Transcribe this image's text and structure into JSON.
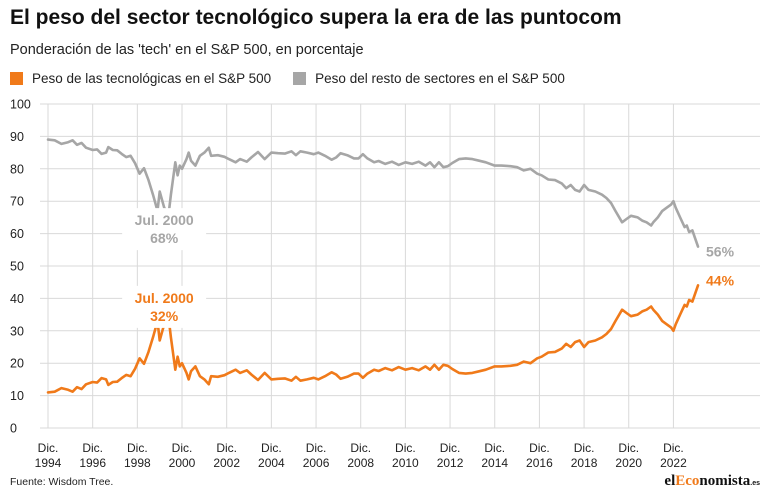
{
  "header": {
    "title": "El peso del sector tecnológico supera la era de las puntocom",
    "subtitle": "Ponderación de las 'tech' en el S&P 500, en porcentaje"
  },
  "footer": {
    "source": "Fuente: Wisdom Tree.",
    "brand_prefix": "el",
    "brand_accent": "Eco",
    "brand_suffix": "nomista",
    "brand_tld": ".es"
  },
  "colors": {
    "tech": "#f07a1a",
    "rest": "#a6a6a6",
    "grid": "#d9d9d9",
    "brand_accent": "#f07a1a"
  },
  "chart_data": {
    "type": "line",
    "title": "El peso del sector tecnológico supera la era de las puntocom",
    "subtitle": "Ponderación de las 'tech' en el S&P 500, en porcentaje",
    "xlabel": "",
    "ylabel": "",
    "ylim": [
      0,
      100
    ],
    "yticks": [
      0,
      10,
      20,
      30,
      40,
      50,
      60,
      70,
      80,
      90,
      100
    ],
    "xlim": [
      1994.9,
      2024.0
    ],
    "xticks": [
      {
        "value": 1994.9,
        "line1": "Dic.",
        "line2": "1994"
      },
      {
        "value": 1996.9,
        "line1": "Dic.",
        "line2": "1996"
      },
      {
        "value": 1998.9,
        "line1": "Dic.",
        "line2": "1998"
      },
      {
        "value": 2000.9,
        "line1": "Dic.",
        "line2": "2000"
      },
      {
        "value": 2002.9,
        "line1": "Dic.",
        "line2": "2002"
      },
      {
        "value": 2004.9,
        "line1": "Dic.",
        "line2": "2004"
      },
      {
        "value": 2006.9,
        "line1": "Dic.",
        "line2": "2006"
      },
      {
        "value": 2008.9,
        "line1": "Dic.",
        "line2": "2008"
      },
      {
        "value": 2010.9,
        "line1": "Dic.",
        "line2": "2010"
      },
      {
        "value": 2012.9,
        "line1": "Dic.",
        "line2": "2012"
      },
      {
        "value": 2014.9,
        "line1": "Dic.",
        "line2": "2014"
      },
      {
        "value": 2016.9,
        "line1": "Dic.",
        "line2": "2016"
      },
      {
        "value": 2018.9,
        "line1": "Dic.",
        "line2": "2018"
      },
      {
        "value": 2020.9,
        "line1": "Dic.",
        "line2": "2020"
      },
      {
        "value": 2022.9,
        "line1": "Dic.",
        "line2": "2022"
      }
    ],
    "grid": true,
    "legend_position": "top-left",
    "series": [
      {
        "name": "Peso de las tecnológicas en el S&P 500",
        "color": "#f07a1a",
        "points": [
          [
            1994.9,
            11
          ],
          [
            1995.2,
            11.2
          ],
          [
            1995.5,
            12.3
          ],
          [
            1995.8,
            11.8
          ],
          [
            1996.0,
            11.2
          ],
          [
            1996.2,
            12.6
          ],
          [
            1996.4,
            12.0
          ],
          [
            1996.6,
            13.5
          ],
          [
            1996.9,
            14.2
          ],
          [
            1997.1,
            14.0
          ],
          [
            1997.3,
            15.4
          ],
          [
            1997.5,
            15.0
          ],
          [
            1997.6,
            13.3
          ],
          [
            1997.8,
            14.2
          ],
          [
            1998.0,
            14.3
          ],
          [
            1998.2,
            15.4
          ],
          [
            1998.4,
            16.4
          ],
          [
            1998.6,
            16.0
          ],
          [
            1998.8,
            18.3
          ],
          [
            1999.0,
            21.5
          ],
          [
            1999.2,
            19.8
          ],
          [
            1999.4,
            23.5
          ],
          [
            1999.6,
            28.0
          ],
          [
            1999.8,
            33.0
          ],
          [
            1999.9,
            27.0
          ],
          [
            2000.1,
            32.0
          ],
          [
            2000.3,
            34.0
          ],
          [
            2000.4,
            28.0
          ],
          [
            2000.5,
            23.0
          ],
          [
            2000.6,
            18.0
          ],
          [
            2000.7,
            22.0
          ],
          [
            2000.8,
            19.0
          ],
          [
            2000.9,
            20.0
          ],
          [
            2001.1,
            17.0
          ],
          [
            2001.2,
            15.0
          ],
          [
            2001.3,
            17.5
          ],
          [
            2001.5,
            19.0
          ],
          [
            2001.7,
            16.0
          ],
          [
            2001.9,
            15.0
          ],
          [
            2002.1,
            13.5
          ],
          [
            2002.2,
            16.0
          ],
          [
            2002.5,
            15.8
          ],
          [
            2002.8,
            16.3
          ],
          [
            2003.0,
            17.0
          ],
          [
            2003.3,
            18.0
          ],
          [
            2003.5,
            17.0
          ],
          [
            2003.8,
            17.8
          ],
          [
            2004.0,
            16.5
          ],
          [
            2004.3,
            14.8
          ],
          [
            2004.6,
            17.0
          ],
          [
            2004.9,
            15.0
          ],
          [
            2005.2,
            15.2
          ],
          [
            2005.5,
            15.3
          ],
          [
            2005.8,
            14.6
          ],
          [
            2006.0,
            15.8
          ],
          [
            2006.2,
            14.6
          ],
          [
            2006.5,
            15.0
          ],
          [
            2006.8,
            15.5
          ],
          [
            2007.0,
            15.0
          ],
          [
            2007.3,
            16.0
          ],
          [
            2007.6,
            17.2
          ],
          [
            2007.8,
            16.5
          ],
          [
            2008.0,
            15.2
          ],
          [
            2008.3,
            15.8
          ],
          [
            2008.6,
            16.8
          ],
          [
            2008.8,
            16.8
          ],
          [
            2009.0,
            15.5
          ],
          [
            2009.2,
            16.8
          ],
          [
            2009.5,
            18.0
          ],
          [
            2009.7,
            17.6
          ],
          [
            2010.0,
            18.5
          ],
          [
            2010.3,
            17.8
          ],
          [
            2010.6,
            18.8
          ],
          [
            2010.9,
            18.0
          ],
          [
            2011.2,
            18.5
          ],
          [
            2011.5,
            17.8
          ],
          [
            2011.8,
            19.0
          ],
          [
            2012.0,
            18.0
          ],
          [
            2012.2,
            19.5
          ],
          [
            2012.4,
            18.0
          ],
          [
            2012.6,
            19.5
          ],
          [
            2012.8,
            19.2
          ],
          [
            2013.0,
            18.2
          ],
          [
            2013.3,
            17.0
          ],
          [
            2013.6,
            16.8
          ],
          [
            2013.9,
            17.0
          ],
          [
            2014.2,
            17.5
          ],
          [
            2014.5,
            18.0
          ],
          [
            2014.9,
            19.0
          ],
          [
            2015.2,
            19.0
          ],
          [
            2015.6,
            19.2
          ],
          [
            2015.9,
            19.5
          ],
          [
            2016.2,
            20.5
          ],
          [
            2016.5,
            20.0
          ],
          [
            2016.8,
            21.5
          ],
          [
            2017.0,
            22.0
          ],
          [
            2017.3,
            23.3
          ],
          [
            2017.6,
            23.5
          ],
          [
            2017.9,
            24.5
          ],
          [
            2018.1,
            26.0
          ],
          [
            2018.3,
            25.0
          ],
          [
            2018.5,
            26.5
          ],
          [
            2018.7,
            27.0
          ],
          [
            2018.9,
            25.0
          ],
          [
            2019.1,
            26.5
          ],
          [
            2019.4,
            27.0
          ],
          [
            2019.7,
            28.0
          ],
          [
            2019.9,
            29.0
          ],
          [
            2020.1,
            30.5
          ],
          [
            2020.3,
            33.0
          ],
          [
            2020.6,
            36.5
          ],
          [
            2020.8,
            35.5
          ],
          [
            2021.0,
            34.5
          ],
          [
            2021.3,
            35.0
          ],
          [
            2021.5,
            36.0
          ],
          [
            2021.7,
            36.5
          ],
          [
            2021.9,
            37.5
          ],
          [
            2022.0,
            36.5
          ],
          [
            2022.2,
            35.0
          ],
          [
            2022.4,
            33.0
          ],
          [
            2022.6,
            32.0
          ],
          [
            2022.8,
            31.0
          ],
          [
            2022.9,
            30.0
          ],
          [
            2023.0,
            32.0
          ],
          [
            2023.2,
            35.0
          ],
          [
            2023.4,
            38.0
          ],
          [
            2023.5,
            37.5
          ],
          [
            2023.6,
            39.5
          ],
          [
            2023.75,
            39.0
          ],
          [
            2023.85,
            41.0
          ],
          [
            2024.0,
            44.0
          ]
        ]
      },
      {
        "name": "Peso del resto de sectores en el S&P 500",
        "color": "#a6a6a6",
        "points": [
          [
            1994.9,
            89
          ],
          [
            1995.2,
            88.8
          ],
          [
            1995.5,
            87.7
          ],
          [
            1995.8,
            88.2
          ],
          [
            1996.0,
            88.8
          ],
          [
            1996.2,
            87.4
          ],
          [
            1996.4,
            88.0
          ],
          [
            1996.6,
            86.5
          ],
          [
            1996.9,
            85.8
          ],
          [
            1997.1,
            86.0
          ],
          [
            1997.3,
            84.6
          ],
          [
            1997.5,
            85.0
          ],
          [
            1997.6,
            86.7
          ],
          [
            1997.8,
            85.8
          ],
          [
            1998.0,
            85.7
          ],
          [
            1998.2,
            84.6
          ],
          [
            1998.4,
            83.6
          ],
          [
            1998.6,
            84.0
          ],
          [
            1998.8,
            81.7
          ],
          [
            1999.0,
            78.5
          ],
          [
            1999.2,
            80.2
          ],
          [
            1999.4,
            76.5
          ],
          [
            1999.6,
            72.0
          ],
          [
            1999.8,
            67.0
          ],
          [
            1999.9,
            73.0
          ],
          [
            2000.1,
            68.0
          ],
          [
            2000.3,
            66.0
          ],
          [
            2000.4,
            72.0
          ],
          [
            2000.5,
            77.0
          ],
          [
            2000.6,
            82.0
          ],
          [
            2000.7,
            78.0
          ],
          [
            2000.8,
            81.0
          ],
          [
            2000.9,
            80.0
          ],
          [
            2001.1,
            83.0
          ],
          [
            2001.2,
            85.0
          ],
          [
            2001.3,
            82.5
          ],
          [
            2001.5,
            81.0
          ],
          [
            2001.7,
            84.0
          ],
          [
            2001.9,
            85.0
          ],
          [
            2002.1,
            86.5
          ],
          [
            2002.2,
            84.0
          ],
          [
            2002.5,
            84.2
          ],
          [
            2002.8,
            83.7
          ],
          [
            2003.0,
            83.0
          ],
          [
            2003.3,
            82.0
          ],
          [
            2003.5,
            83.0
          ],
          [
            2003.8,
            82.2
          ],
          [
            2004.0,
            83.5
          ],
          [
            2004.3,
            85.2
          ],
          [
            2004.6,
            83.0
          ],
          [
            2004.9,
            85.0
          ],
          [
            2005.2,
            84.8
          ],
          [
            2005.5,
            84.7
          ],
          [
            2005.8,
            85.4
          ],
          [
            2006.0,
            84.2
          ],
          [
            2006.2,
            85.4
          ],
          [
            2006.5,
            85.0
          ],
          [
            2006.8,
            84.5
          ],
          [
            2007.0,
            85.0
          ],
          [
            2007.3,
            84.0
          ],
          [
            2007.6,
            82.8
          ],
          [
            2007.8,
            83.5
          ],
          [
            2008.0,
            84.8
          ],
          [
            2008.3,
            84.2
          ],
          [
            2008.6,
            83.2
          ],
          [
            2008.8,
            83.2
          ],
          [
            2009.0,
            84.5
          ],
          [
            2009.2,
            83.2
          ],
          [
            2009.5,
            82.0
          ],
          [
            2009.7,
            82.4
          ],
          [
            2010.0,
            81.5
          ],
          [
            2010.3,
            82.2
          ],
          [
            2010.6,
            81.2
          ],
          [
            2010.9,
            82.0
          ],
          [
            2011.2,
            81.5
          ],
          [
            2011.5,
            82.2
          ],
          [
            2011.8,
            81.0
          ],
          [
            2012.0,
            82.0
          ],
          [
            2012.2,
            80.5
          ],
          [
            2012.4,
            82.0
          ],
          [
            2012.6,
            80.5
          ],
          [
            2012.8,
            80.8
          ],
          [
            2013.0,
            81.8
          ],
          [
            2013.3,
            83.0
          ],
          [
            2013.6,
            83.2
          ],
          [
            2013.9,
            83.0
          ],
          [
            2014.2,
            82.5
          ],
          [
            2014.5,
            82.0
          ],
          [
            2014.9,
            81.0
          ],
          [
            2015.2,
            81.0
          ],
          [
            2015.6,
            80.8
          ],
          [
            2015.9,
            80.5
          ],
          [
            2016.2,
            79.5
          ],
          [
            2016.5,
            80.0
          ],
          [
            2016.8,
            78.5
          ],
          [
            2017.0,
            78.0
          ],
          [
            2017.3,
            76.7
          ],
          [
            2017.6,
            76.5
          ],
          [
            2017.9,
            75.5
          ],
          [
            2018.1,
            74.0
          ],
          [
            2018.3,
            75.0
          ],
          [
            2018.5,
            73.5
          ],
          [
            2018.7,
            73.0
          ],
          [
            2018.9,
            75.0
          ],
          [
            2019.1,
            73.5
          ],
          [
            2019.4,
            73.0
          ],
          [
            2019.7,
            72.0
          ],
          [
            2019.9,
            71.0
          ],
          [
            2020.1,
            69.5
          ],
          [
            2020.3,
            67.0
          ],
          [
            2020.6,
            63.5
          ],
          [
            2020.8,
            64.5
          ],
          [
            2021.0,
            65.5
          ],
          [
            2021.3,
            65.0
          ],
          [
            2021.5,
            64.0
          ],
          [
            2021.7,
            63.5
          ],
          [
            2021.9,
            62.5
          ],
          [
            2022.0,
            63.5
          ],
          [
            2022.2,
            65.0
          ],
          [
            2022.4,
            67.0
          ],
          [
            2022.6,
            68.0
          ],
          [
            2022.8,
            69.0
          ],
          [
            2022.9,
            70.0
          ],
          [
            2023.0,
            68.0
          ],
          [
            2023.2,
            65.0
          ],
          [
            2023.4,
            62.0
          ],
          [
            2023.5,
            62.5
          ],
          [
            2023.6,
            60.5
          ],
          [
            2023.75,
            61.0
          ],
          [
            2023.85,
            59.0
          ],
          [
            2024.0,
            56.0
          ]
        ]
      }
    ],
    "annotations": [
      {
        "line1": "Jul. 2000",
        "line2": "68%",
        "x": 2000.1,
        "y": 62,
        "series": 1
      },
      {
        "line1": "Jul. 2000",
        "line2": "32%",
        "x": 2000.1,
        "y": 38,
        "series": 0
      },
      {
        "line1": "56%",
        "x": 2024.0,
        "y": 54.5,
        "series": 1,
        "end_label": true
      },
      {
        "line1": "44%",
        "x": 2024.0,
        "y": 45.5,
        "series": 0,
        "end_label": true
      }
    ]
  }
}
